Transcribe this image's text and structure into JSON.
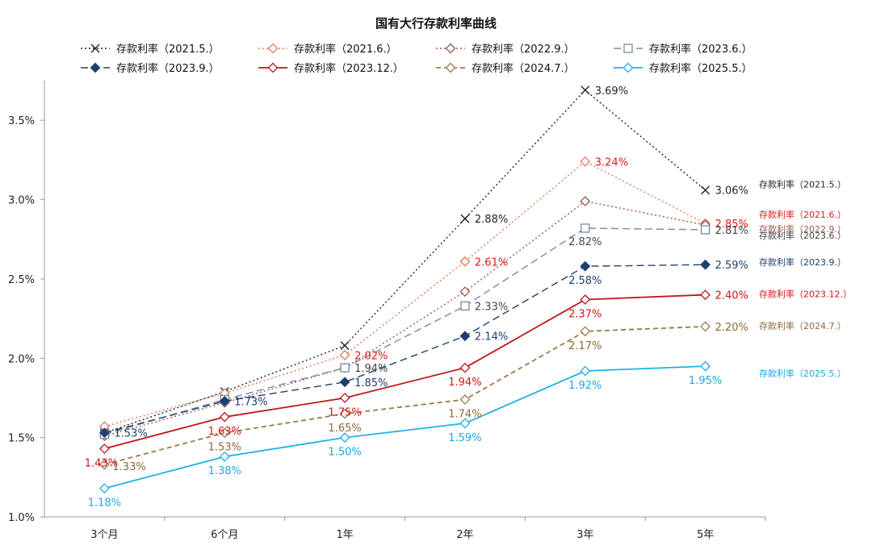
{
  "chart_data": {
    "type": "line",
    "title": "国有大行存款利率曲线",
    "xlabel": "",
    "ylabel": "",
    "categories": [
      "3个月",
      "6个月",
      "1年",
      "2年",
      "3年",
      "5年"
    ],
    "y_ticks": [
      "1.0%",
      "1.5%",
      "2.0%",
      "2.5%",
      "3.0%",
      "3.5%"
    ],
    "ylim": [
      1.0,
      3.75
    ],
    "grid": false,
    "legend_position": "top",
    "series": [
      {
        "name": "存款利率（2021.5.）",
        "values": [
          1.53,
          1.79,
          2.08,
          2.88,
          3.69,
          3.06
        ],
        "color": "#222222",
        "dash": "2,3",
        "marker": "x",
        "point_labels": [
          "",
          "",
          "",
          "2.88%",
          "3.69%",
          "3.06%"
        ],
        "label_color": "#222222",
        "end_label": "存款利率（2021.5.）"
      },
      {
        "name": "存款利率（2021.6.）",
        "values": [
          1.57,
          1.78,
          2.02,
          2.61,
          3.24,
          2.85
        ],
        "color": "#e07a5a",
        "dash": "2,3",
        "marker": "diamond-open",
        "point_labels": [
          "",
          "",
          "2.02%",
          "2.61%",
          "3.24%",
          "2.85%"
        ],
        "label_color": "#e01a1a",
        "end_label": "存款利率（2021.6.）"
      },
      {
        "name": "存款利率（2022.9.）",
        "values": [
          1.51,
          1.72,
          1.94,
          2.42,
          2.99,
          2.84
        ],
        "color": "#9a5a4a",
        "dash": "2,3",
        "marker": "diamond-open",
        "point_labels": [
          "",
          "",
          "",
          "",
          "",
          ""
        ],
        "label_color": "#9a5a4a",
        "end_label": "存款利率（2022.9.）"
      },
      {
        "name": "存款利率（2023.6.）",
        "values": [
          1.52,
          1.74,
          1.94,
          2.33,
          2.82,
          2.81
        ],
        "color": "#7a8aa0",
        "dash": "9,5",
        "marker": "square-open",
        "point_labels": [
          "",
          "",
          "1.94%",
          "2.33%",
          "2.82%",
          "2.81%"
        ],
        "label_color": "#444444",
        "end_label": "存款利率（2023.6.）"
      },
      {
        "name": "存款利率（2023.9.）",
        "values": [
          1.53,
          1.73,
          1.85,
          2.14,
          2.58,
          2.59
        ],
        "color": "#1f3f6e",
        "dash": "9,5",
        "marker": "diamond-filled",
        "point_labels": [
          "1.53%",
          "1.73%",
          "1.85%",
          "2.14%",
          "2.58%",
          "2.59%"
        ],
        "label_color": "#1f3f6e",
        "end_label": "存款利率（2023.9.）"
      },
      {
        "name": "存款利率（2023.12.）",
        "values": [
          1.43,
          1.63,
          1.75,
          1.94,
          2.37,
          2.4
        ],
        "color": "#c0141c",
        "dash": "",
        "marker": "diamond-open",
        "point_labels": [
          "1.43%",
          "1.63%",
          "1.75%",
          "1.94%",
          "2.37%",
          "2.40%"
        ],
        "label_color": "#d41418",
        "end_label": "存款利率（2023.12.）"
      },
      {
        "name": "存款利率（2024.7.）",
        "values": [
          1.33,
          1.53,
          1.65,
          1.74,
          2.17,
          2.2
        ],
        "color": "#9a7a4a",
        "dash": "6,4",
        "marker": "diamond-open",
        "point_labels": [
          "1.33%",
          "1.53%",
          "1.65%",
          "1.74%",
          "2.17%",
          "2.20%"
        ],
        "label_color": "#8a6a3a",
        "end_label": "存款利率（2024.7.）"
      },
      {
        "name": "存款利率（2025.5.）",
        "values": [
          1.18,
          1.38,
          1.5,
          1.59,
          1.92,
          1.95
        ],
        "color": "#20b0e6",
        "dash": "",
        "marker": "diamond-open",
        "point_labels": [
          "1.18%",
          "1.38%",
          "1.50%",
          "1.59%",
          "1.92%",
          "1.95%"
        ],
        "label_color": "#1aa8e0",
        "end_label": "存款利率（2025.5.）"
      }
    ]
  }
}
